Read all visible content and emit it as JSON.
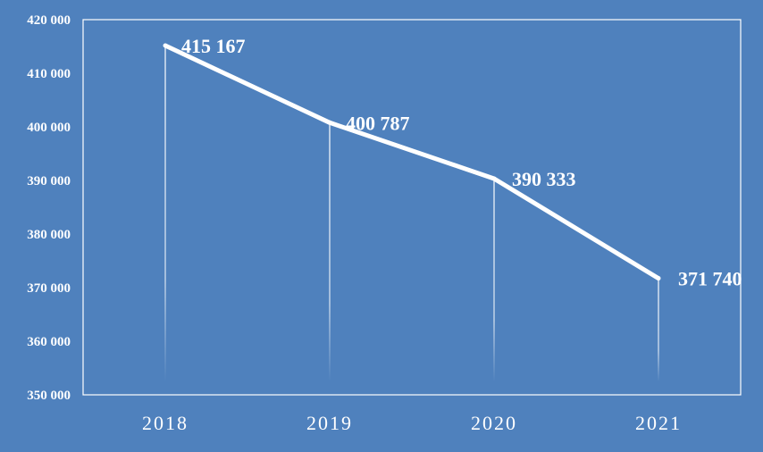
{
  "chart_data": {
    "type": "line",
    "categories": [
      "2018",
      "2019",
      "2020",
      "2021"
    ],
    "series": [
      {
        "values": [
          415167,
          400787,
          390333,
          371740
        ],
        "data_labels": [
          "415 167",
          "400 787",
          "390 333",
          "371 740"
        ]
      }
    ],
    "ylim": [
      350000,
      420000
    ],
    "yticks": [
      350000,
      360000,
      370000,
      380000,
      390000,
      400000,
      410000,
      420000
    ],
    "ytick_labels": [
      "350 000",
      "360 000",
      "370 000",
      "380 000",
      "390 000",
      "400 000",
      "410 000",
      "420 000"
    ],
    "grid": false,
    "drop_lines": true,
    "title": "",
    "xlabel": "",
    "ylabel": ""
  },
  "colors": {
    "background": "#4f81bd",
    "line": "#ffffff",
    "text": "#ffffff"
  }
}
